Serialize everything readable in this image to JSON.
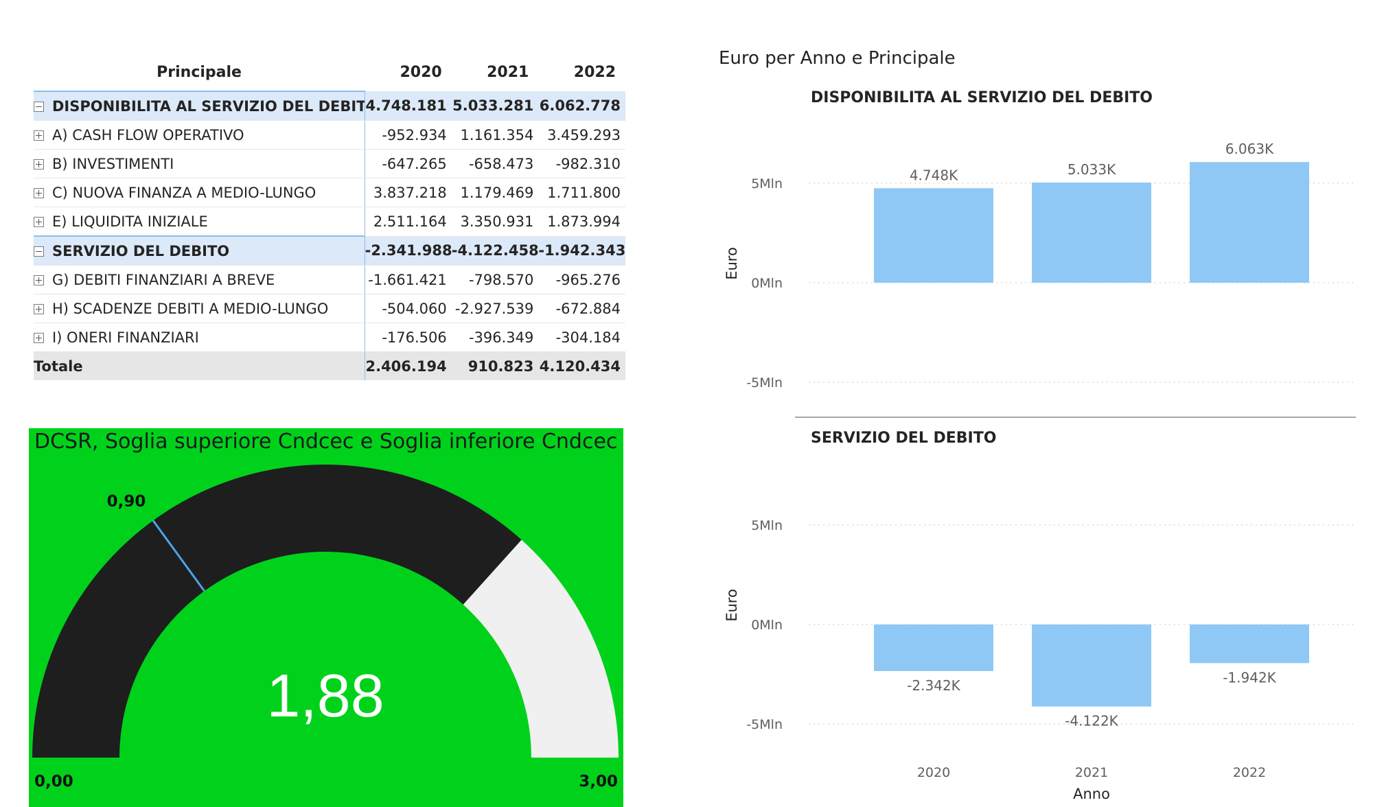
{
  "matrix": {
    "headers": {
      "label": "Principale",
      "years": [
        "2020",
        "2021",
        "2022"
      ]
    },
    "rows": [
      {
        "type": "group",
        "label": "DISPONIBILITA AL SERVIZIO DEL DEBITO",
        "values": [
          "4.748.181",
          "5.033.281",
          "6.062.778"
        ]
      },
      {
        "type": "item",
        "label": "A) CASH FLOW OPERATIVO",
        "values": [
          "-952.934",
          "1.161.354",
          "3.459.293"
        ]
      },
      {
        "type": "item",
        "label": "B) INVESTIMENTI",
        "values": [
          "-647.265",
          "-658.473",
          "-982.310"
        ]
      },
      {
        "type": "item",
        "label": "C) NUOVA FINANZA A MEDIO-LUNGO",
        "values": [
          "3.837.218",
          "1.179.469",
          "1.711.800"
        ]
      },
      {
        "type": "item",
        "label": "E) LIQUIDITA INIZIALE",
        "values": [
          "2.511.164",
          "3.350.931",
          "1.873.994"
        ]
      },
      {
        "type": "group",
        "label": "SERVIZIO DEL DEBITO",
        "values": [
          "-2.341.988",
          "-4.122.458",
          "-1.942.343"
        ]
      },
      {
        "type": "item",
        "label": "G) DEBITI FINANZIARI A BREVE",
        "values": [
          "-1.661.421",
          "-798.570",
          "-965.276"
        ]
      },
      {
        "type": "item",
        "label": "H) SCADENZE DEBITI A MEDIO-LUNGO",
        "values": [
          "-504.060",
          "-2.927.539",
          "-672.884"
        ]
      },
      {
        "type": "item",
        "label": "I) ONERI FINANZIARI",
        "values": [
          "-176.506",
          "-396.349",
          "-304.184"
        ]
      }
    ],
    "total": {
      "label": "Totale",
      "values": [
        "2.406.194",
        "910.823",
        "4.120.434"
      ]
    }
  },
  "gauge": {
    "title": "DCSR, Soglia superiore Cndcec e Soglia inferiore Cndcec",
    "value": 1.88,
    "value_label": "1,88",
    "min": 0,
    "max": 3,
    "min_label": "0,00",
    "max_label": "3,00",
    "lower_threshold": 0.9,
    "lower_threshold_label": "0,90",
    "upper_threshold": 2.2,
    "colors": {
      "background": "#00d21b",
      "fill": "#1e1e1e",
      "rest": "#f0f0f0",
      "marker": "#4da3e8"
    }
  },
  "chart_data": {
    "type": "bar",
    "title": "Euro per Anno e Principale",
    "categories": [
      "2020",
      "2021",
      "2022"
    ],
    "xlabel": "Anno",
    "ylabel": "Euro",
    "ylim": [
      -5000000,
      6000000
    ],
    "yticks": [
      {
        "value": 5000000,
        "label": "5Mln"
      },
      {
        "value": 0,
        "label": "0Mln"
      },
      {
        "value": -5000000,
        "label": "-5Mln"
      }
    ],
    "bar_color": "#8fc8f5",
    "grid": true,
    "panels": [
      {
        "name": "DISPONIBILITA AL SERVIZIO DEL DEBITO",
        "values": [
          4748181,
          5033281,
          6062778
        ],
        "labels": [
          "4.748K",
          "5.033K",
          "6.063K"
        ]
      },
      {
        "name": "SERVIZIO DEL DEBITO",
        "values": [
          -2341988,
          -4122458,
          -1942343
        ],
        "labels": [
          "-2.342K",
          "-4.122K",
          "-1.942K"
        ]
      }
    ]
  }
}
